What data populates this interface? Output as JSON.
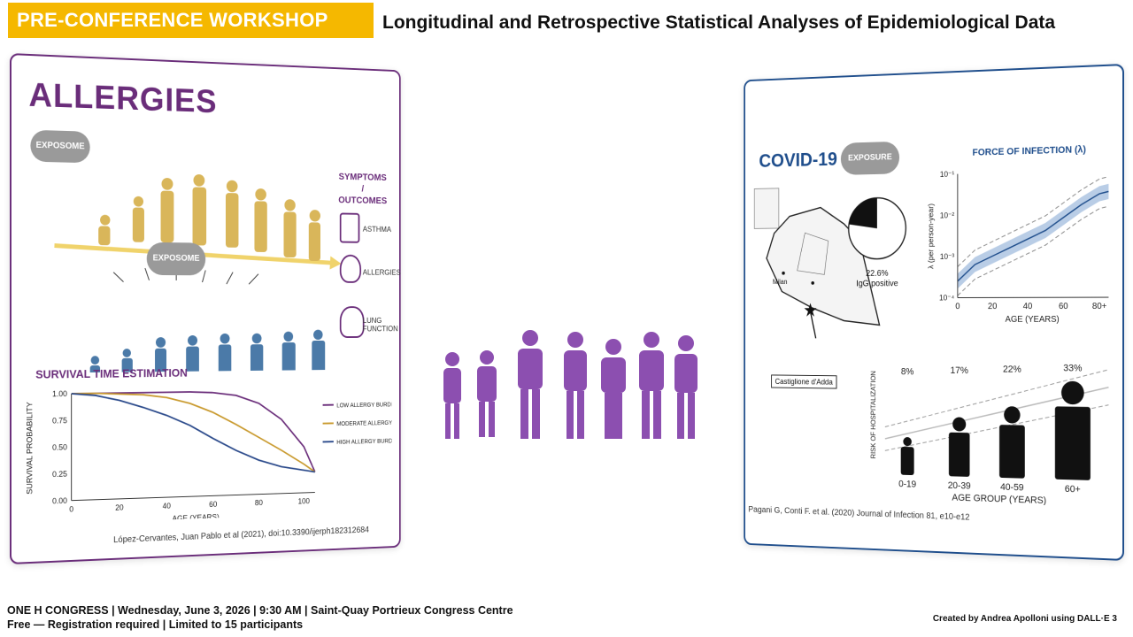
{
  "banner": "PRE-CONFERENCE WORKSHOP",
  "title": "Longitudinal and Retrospective Statistical Analyses of Epidemiological Data",
  "left_panel": {
    "heading": "ALLERGIES",
    "exposome_top": "EXPOSOME",
    "exposome_mid": "EXPOSOME",
    "symptoms_title": "SYMPTOMS / OUTCOMES",
    "symptoms": [
      "ASTHMA",
      "ALLERGIES",
      "LUNG FUNCTION"
    ],
    "survival_title": "SURVIVAL TIME ESTIMATION",
    "citation": "López-Cervantes, Juan Pablo et al (2021), doi:10.3390/ijerph182312684"
  },
  "right_panel": {
    "heading": "COVID-19",
    "exposure": "EXPOSURE",
    "map_labels": {
      "city": "Milan",
      "town": "Castiglione d'Adda"
    },
    "pie": {
      "value_pct": 22.6,
      "label_line1": "22.6%",
      "label_line2": "IgG positive"
    },
    "foi_title": "FORCE OF INFECTION (λ)",
    "foi_ylabel": "λ (per person-year)",
    "foi_xlabel": "AGE (YEARS)",
    "foi_xticks": [
      "0",
      "20",
      "40",
      "60",
      "80+"
    ],
    "foi_yticks": [
      "10⁻¹",
      "10⁻²",
      "10⁻³",
      "10⁻⁴"
    ],
    "hosp_ylabel": "RISK OF HOSPITALIZATION",
    "hosp_xlabel": "AGE GROUP (YEARS)",
    "citation": "Pagani G, Conti F. et al. (2020) Journal of Infection 81, e10-e12"
  },
  "chart_data": [
    {
      "type": "line",
      "xlabel": "AGE (YEARS)",
      "ylabel": "SURVIVAL PROBABILITY",
      "xticks": [
        "0",
        "20",
        "40",
        "60",
        "80",
        "100"
      ],
      "yticks": [
        "1.00",
        "0.75",
        "0.50",
        "0.25",
        "0.00"
      ],
      "xlim": [
        0,
        105
      ],
      "ylim": [
        0,
        1
      ],
      "x": [
        0,
        10,
        20,
        30,
        40,
        50,
        60,
        70,
        80,
        90,
        100,
        105
      ],
      "series": [
        {
          "name": "LOW ALLERGY BURDEN",
          "color": "#6a2d7a",
          "values": [
            1.0,
            1.0,
            1.0,
            1.0,
            1.0,
            1.0,
            0.99,
            0.96,
            0.88,
            0.72,
            0.45,
            0.2
          ]
        },
        {
          "name": "MODERATE ALLERGY BURDEN",
          "color": "#c99a2e",
          "values": [
            1.0,
            1.0,
            0.99,
            0.98,
            0.95,
            0.89,
            0.8,
            0.68,
            0.55,
            0.42,
            0.28,
            0.2
          ]
        },
        {
          "name": "HIGH ALLERGY BURDEN",
          "color": "#2b4a8b",
          "values": [
            1.0,
            0.98,
            0.93,
            0.86,
            0.78,
            0.68,
            0.55,
            0.43,
            0.33,
            0.26,
            0.22,
            0.2
          ]
        }
      ]
    },
    {
      "type": "area",
      "title": "FORCE OF INFECTION (λ)",
      "xlabel": "AGE (YEARS)",
      "ylabel": "λ (per person-year)",
      "log_y": true,
      "xlim": [
        0,
        85
      ],
      "ylim_log10": [
        -4,
        -1
      ],
      "x": [
        0,
        10,
        20,
        30,
        40,
        50,
        60,
        70,
        80,
        85
      ],
      "series": [
        {
          "name": "",
          "log10_values": [
            -3.6,
            -3.2,
            -3.0,
            -2.8,
            -2.6,
            -2.4,
            -2.1,
            -1.8,
            -1.55,
            -1.5
          ]
        }
      ]
    },
    {
      "type": "bar",
      "xlabel": "AGE GROUP (YEARS)",
      "ylabel": "RISK OF HOSPITALIZATION",
      "categories": [
        "0-19",
        "20-39",
        "40-59",
        "60+"
      ],
      "values": [
        8,
        17,
        22,
        33
      ],
      "labels": [
        "8%",
        "17%",
        "22%",
        "33%"
      ]
    }
  ],
  "footer": {
    "line1": "ONE H CONGRESS  |  Wednesday, June 3, 2026  |  9:30 AM  |  Saint-Quay Portrieux Congress Centre",
    "line2": "Free — Registration required  |  Limited to 15 participants",
    "credit": "Created by Andrea Apolloni using DALL·E 3"
  }
}
